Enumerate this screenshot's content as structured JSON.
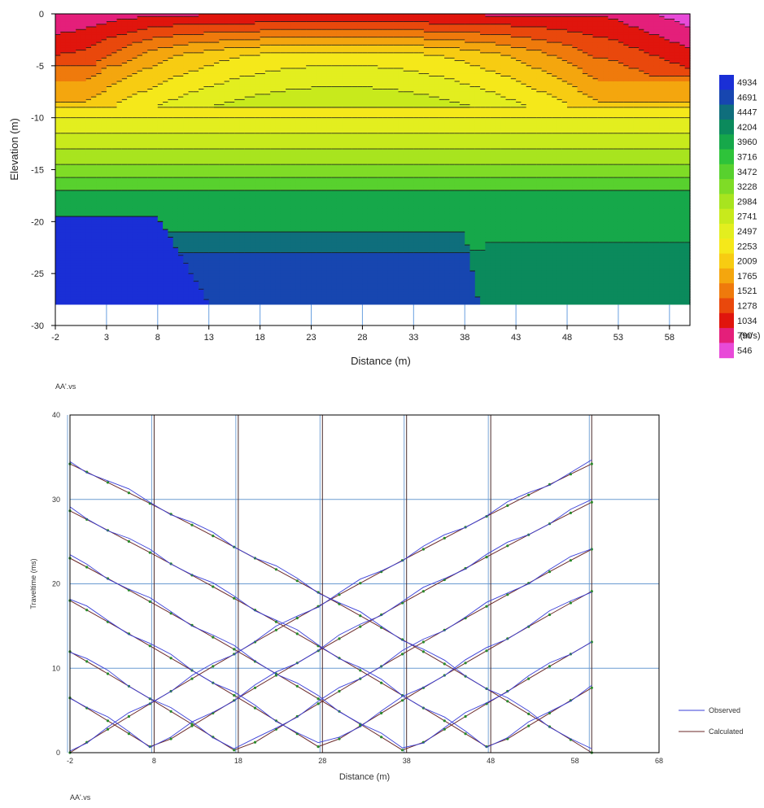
{
  "chart_data": [
    {
      "type": "heatmap",
      "xlabel": "Distance (m)",
      "ylabel": "Elevation (m)",
      "xlim": [
        -2,
        60
      ],
      "ylim": [
        -30,
        0
      ],
      "xticks": [
        "-2",
        "3",
        "8",
        "13",
        "18",
        "23",
        "28",
        "33",
        "38",
        "43",
        "48",
        "53",
        "58"
      ],
      "yticks": [
        "0",
        "-5",
        "-10",
        "-15",
        "-20",
        "-25",
        "-30"
      ],
      "colorbar": {
        "unit": "(m/s)",
        "levels": [
          4934,
          4691,
          4447,
          4204,
          3960,
          3716,
          3472,
          3228,
          2984,
          2741,
          2497,
          2253,
          2009,
          1765,
          1521,
          1278,
          1034,
          790,
          546
        ],
        "colors": [
          "#1a2fd6",
          "#1746b0",
          "#0f6e7c",
          "#0b8a5c",
          "#16a84a",
          "#2ec33a",
          "#58d12e",
          "#7fdc26",
          "#a8e41f",
          "#c8ea1c",
          "#e3ee1f",
          "#f5e81a",
          "#f7cc12",
          "#f4a60e",
          "#ef7a0c",
          "#e9480c",
          "#e0150d",
          "#e41f7a",
          "#e84ad8"
        ]
      },
      "contour_grid": {
        "x": [
          -2,
          3,
          8,
          13,
          18,
          23,
          28,
          33,
          38,
          43,
          48,
          53,
          58,
          60
        ],
        "y": [
          0,
          -1,
          -2,
          -3,
          -4,
          -5,
          -6,
          -7,
          -8,
          -9,
          -10,
          -11,
          -12,
          -13,
          -14,
          -15,
          -16,
          -17,
          -18,
          -19,
          -20,
          -21,
          -22,
          -23,
          -24,
          -25,
          -26,
          -27,
          -28
        ]
      }
    },
    {
      "type": "line",
      "footnote": "AA'.vs",
      "xlabel": "Distance (m)",
      "ylabel": "Traveltime (ms)",
      "xlim": [
        -2,
        68
      ],
      "ylim": [
        0,
        40
      ],
      "xticks": [
        "-2",
        "8",
        "18",
        "28",
        "38",
        "48",
        "58",
        "68"
      ],
      "yticks": [
        "0",
        "10",
        "20",
        "30",
        "40"
      ],
      "legend": {
        "position": "right",
        "entries": [
          "Observed",
          "Calculated"
        ]
      },
      "observed_color": "#3a3fd8",
      "calculated_color": "#6b2a2a",
      "marker_color": "#2a8a2a",
      "sources": [
        -2,
        8,
        18,
        28,
        38,
        48,
        60
      ],
      "slowness_ms_per_m": 0.52,
      "geophones": [
        -2,
        0,
        2.5,
        5,
        7.5,
        10,
        12.5,
        15,
        17.5,
        20,
        22.5,
        25,
        27.5,
        30,
        32.5,
        35,
        37.5,
        40,
        42.5,
        45,
        47.5,
        50,
        52.5,
        55,
        57.5,
        60
      ]
    }
  ],
  "top_footnote": "AA'.vs"
}
